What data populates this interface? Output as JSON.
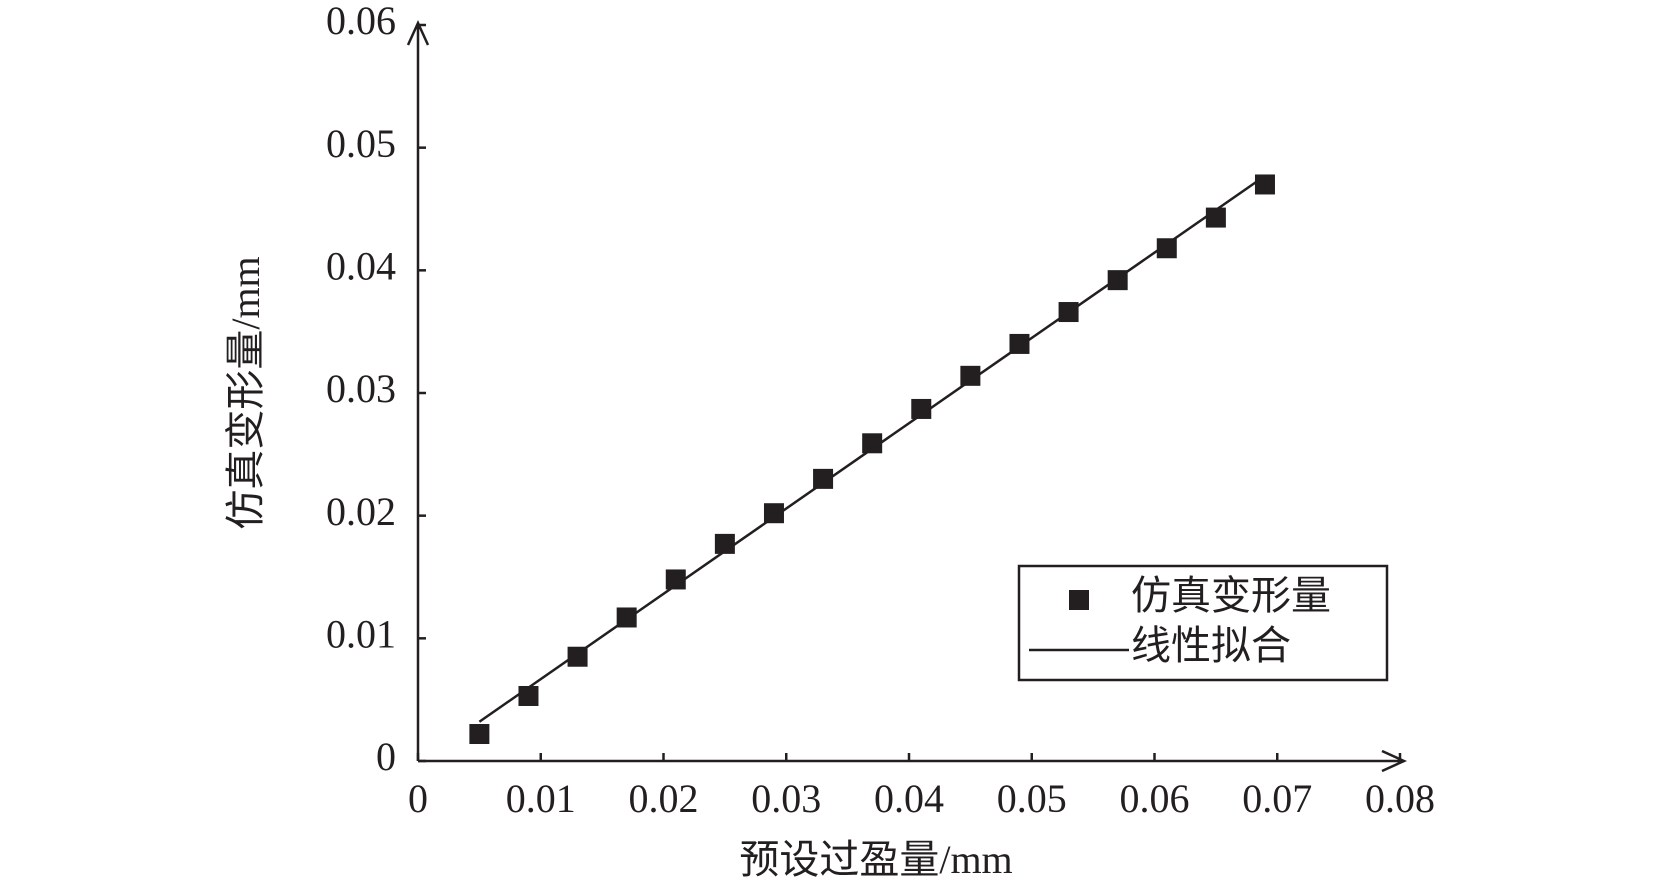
{
  "chart_data": {
    "type": "scatter",
    "x_label": "预设过盈量/mm",
    "y_label": "仿真变形量/mm",
    "xlim": [
      0,
      0.08
    ],
    "ylim": [
      0,
      0.06
    ],
    "xticks": [
      0,
      0.01,
      0.02,
      0.03,
      0.04,
      0.05,
      0.06,
      0.07,
      0.08
    ],
    "yticks": [
      0,
      0.01,
      0.02,
      0.03,
      0.04,
      0.05,
      0.06
    ],
    "legend": "lower right",
    "series": [
      {
        "name": "仿真变形量",
        "color": "#231f20",
        "marker": "square",
        "x": [
          0.005,
          0.009,
          0.013,
          0.017,
          0.021,
          0.025,
          0.029,
          0.033,
          0.037,
          0.041,
          0.045,
          0.049,
          0.053,
          0.057,
          0.061,
          0.065,
          0.069
        ],
        "values": [
          0.0022,
          0.0053,
          0.0085,
          0.0117,
          0.0148,
          0.0177,
          0.0202,
          0.023,
          0.0259,
          0.0287,
          0.0314,
          0.034,
          0.0366,
          0.0392,
          0.0418,
          0.0443,
          0.047
        ]
      },
      {
        "name": "线性拟合",
        "color": "#231f20",
        "marker": "line",
        "x": [
          0.005,
          0.069
        ],
        "values": [
          0.0032,
          0.0477
        ]
      }
    ]
  }
}
